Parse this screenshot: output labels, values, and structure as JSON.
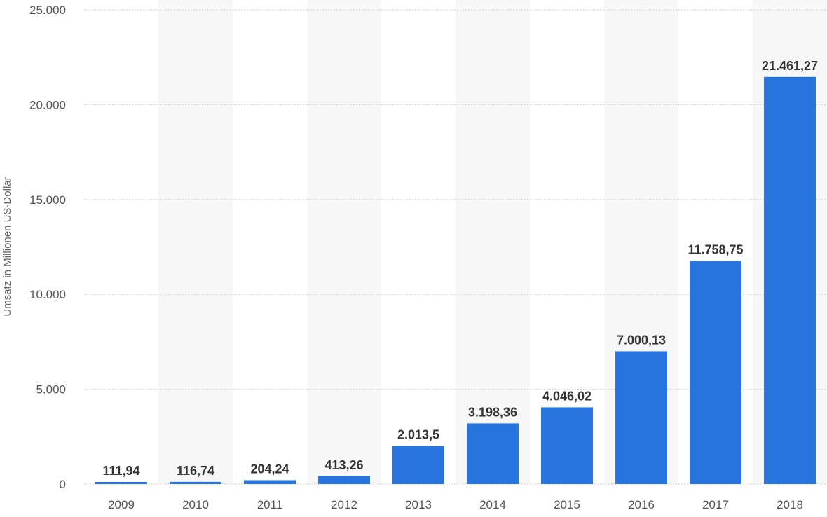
{
  "chart_data": {
    "type": "bar",
    "categories": [
      "2009",
      "2010",
      "2011",
      "2012",
      "2013",
      "2014",
      "2015",
      "2016",
      "2017",
      "2018"
    ],
    "values": [
      111.94,
      116.74,
      204.24,
      413.26,
      2013.5,
      3198.36,
      4046.02,
      7000.13,
      11758.75,
      21461.27
    ],
    "data_labels": [
      "111,94",
      "116,74",
      "204,24",
      "413,26",
      "2.013,5",
      "3.198,36",
      "4.046,02",
      "7.000,13",
      "11.758,75",
      "21.461,27"
    ],
    "ylabel": "Umsatz in Millionen US-Dollar",
    "ylim": [
      0,
      25000
    ],
    "y_ticks": [
      0,
      5000,
      10000,
      15000,
      20000,
      25000
    ],
    "y_tick_labels": [
      "0",
      "5.000",
      "10.000",
      "15.000",
      "20.000",
      "25.000"
    ],
    "grid": true,
    "bar_color": "#2876dd",
    "band_color": "#f7f7f7",
    "grid_color": "#cccccc"
  }
}
